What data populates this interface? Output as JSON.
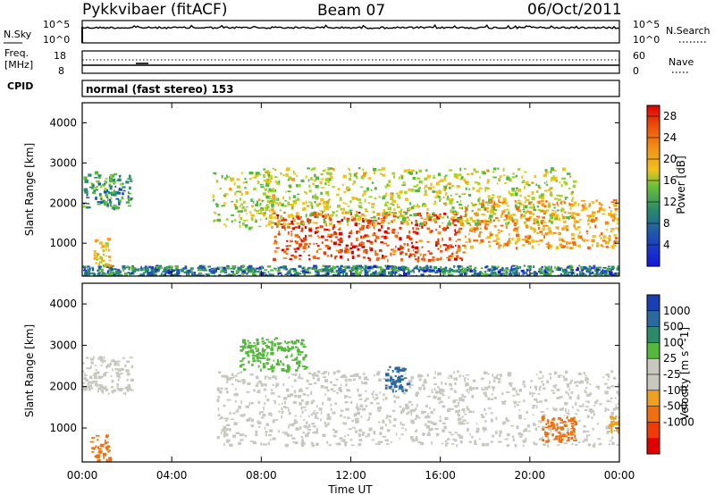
{
  "header": {
    "station": "Pykkvibaer (fitACF)",
    "beam": "Beam 07",
    "date": "06/Oct/2011"
  },
  "noise_panel": {
    "left_label": "N.Sky",
    "right_label": "N.Search",
    "left_ticks": [
      "10^5",
      "10^0"
    ],
    "right_ticks": [
      "10^5",
      "10^0"
    ]
  },
  "freq_panel": {
    "left_label_line1": "Freq.",
    "left_label_line2": "[MHz]",
    "right_label": "Nave",
    "left_ticks": [
      "18",
      "8"
    ],
    "right_ticks": [
      "60",
      "0"
    ]
  },
  "cpid": {
    "label": "CPID",
    "value": "normal (fast stereo) 153"
  },
  "colors": {
    "power_scale": [
      "#1b1bd6",
      "#1f52b0",
      "#2a8a6a",
      "#55b83c",
      "#a7d22c",
      "#f0c21c",
      "#f79a17",
      "#f06a10",
      "#e83a08",
      "#e00000"
    ],
    "velocity_scale": [
      "#1b3fb0",
      "#2a6aa0",
      "#2a8a6a",
      "#55b83c",
      "#c8c8c0",
      "#c8c8c0",
      "#f0a020",
      "#f07010",
      "#f03a08",
      "#e00000"
    ],
    "ground_scatter": "#c8c8c0"
  },
  "chart_data": [
    {
      "type": "heatmap",
      "panel": "power",
      "ylabel": "Slant Range [km]",
      "ylim": [
        180,
        4500
      ],
      "yticks": [
        "1000",
        "2000",
        "3000",
        "4000"
      ],
      "xlim_hours": [
        0,
        24
      ],
      "colorbar_label": "Power [dB]",
      "colorbar_ticks": [
        "4",
        "8",
        "12",
        "16",
        "20",
        "24",
        "28"
      ],
      "colorbar_range": [
        0,
        30
      ],
      "features": [
        {
          "t0": 0.0,
          "t1": 2.2,
          "r_center": 2350,
          "r_width": 450,
          "level": 8
        },
        {
          "t0": 0.0,
          "t1": 24.0,
          "r_center": 280,
          "r_width": 180,
          "level": 6
        },
        {
          "t0": 0.5,
          "t1": 1.2,
          "r_center": 800,
          "r_width": 350,
          "level": 16
        },
        {
          "t0": 5.8,
          "t1": 8.5,
          "r_center": 2100,
          "r_width": 700,
          "level": 14
        },
        {
          "t0": 8.5,
          "t1": 17.0,
          "r_center": 1200,
          "r_width": 600,
          "level": 26
        },
        {
          "t0": 8.0,
          "t1": 22.0,
          "r_center": 2200,
          "r_width": 700,
          "level": 14
        },
        {
          "t0": 17.0,
          "t1": 24.0,
          "r_center": 1500,
          "r_width": 600,
          "level": 20
        }
      ]
    },
    {
      "type": "heatmap",
      "panel": "velocity",
      "ylabel": "Slant Range [km]",
      "ylim": [
        180,
        4500
      ],
      "yticks": [
        "1000",
        "2000",
        "3000",
        "4000"
      ],
      "xlim_hours": [
        0,
        24
      ],
      "xticks": [
        "00:00",
        "04:00",
        "08:00",
        "12:00",
        "16:00",
        "20:00",
        "00:00"
      ],
      "xlabel": "Time UT",
      "colorbar_label": "Velocity [m s^-1]",
      "colorbar_ticks": [
        "1000",
        "500",
        "100",
        "25",
        "-25",
        "-100",
        "-500",
        "-1000"
      ],
      "features": [
        {
          "t0": 0.0,
          "t1": 2.2,
          "r_center": 2300,
          "r_width": 450,
          "level": "ground"
        },
        {
          "t0": 0.3,
          "t1": 1.2,
          "r_center": 500,
          "r_width": 350,
          "level": -300
        },
        {
          "t0": 6.0,
          "t1": 24.0,
          "r_center": 1500,
          "r_width": 900,
          "level": "ground"
        },
        {
          "t0": 7.0,
          "t1": 10.0,
          "r_center": 2800,
          "r_width": 400,
          "level": 50
        },
        {
          "t0": 13.5,
          "t1": 14.5,
          "r_center": 2200,
          "r_width": 300,
          "level": 300
        },
        {
          "t0": 20.5,
          "t1": 22.0,
          "r_center": 1000,
          "r_width": 300,
          "level": -400
        },
        {
          "t0": 23.5,
          "t1": 24.0,
          "r_center": 1100,
          "r_width": 200,
          "level": -200
        }
      ]
    }
  ]
}
